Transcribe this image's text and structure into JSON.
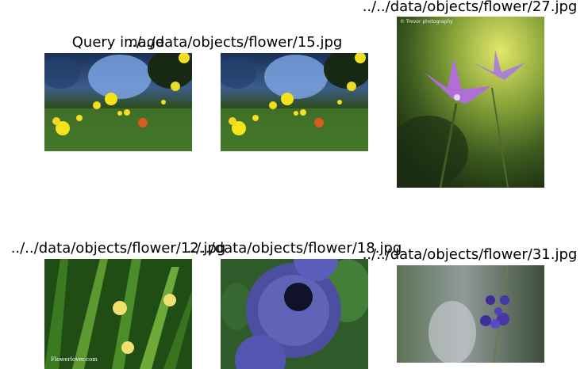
{
  "panels": [
    {
      "caption": "Query image",
      "icon": "yellow-flowers-photo"
    },
    {
      "caption": "../../data/objects/flower/15.jpg",
      "icon": "yellow-flowers-photo"
    },
    {
      "caption": "../../data/objects/flower/27.jpg",
      "icon": "purple-bellflowers-photo",
      "watermark": "© Trevor photography"
    },
    {
      "caption": "../../data/objects/flower/12.jpg",
      "icon": "yellow-iris-leaves-photo",
      "watermark": "Flowerlover.com"
    },
    {
      "caption": "../../data/objects/flower/18.jpg",
      "icon": "globe-thistle-photo"
    },
    {
      "caption": "../../data/objects/flower/31.jpg",
      "icon": "violet-flower-photo"
    }
  ]
}
